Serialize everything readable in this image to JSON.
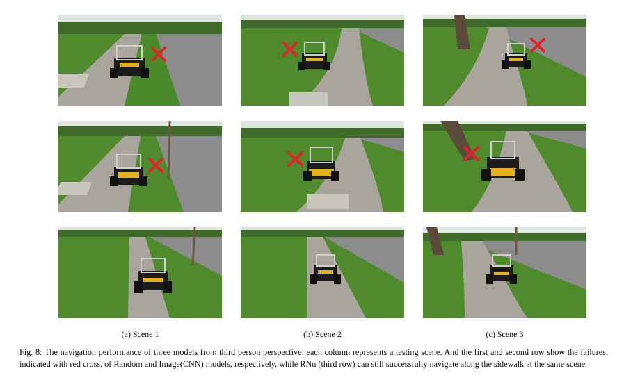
{
  "subfigures": [
    {
      "label": "(a) Scene 1"
    },
    {
      "label": "(b) Scene 2"
    },
    {
      "label": "(c) Scene 3"
    }
  ],
  "rows": [
    {
      "outcome": "failure",
      "marker": "red-cross"
    },
    {
      "outcome": "failure",
      "marker": "red-cross"
    },
    {
      "outcome": "success",
      "marker": "none"
    }
  ],
  "caption": "Fig. 8: The navigation performance of three models from third person perspective: each column represents a testing scene. And the first and second row show the failures, indicated with red cross, of Random and Image(CNN) models, respectively, while RNn (third row) can still successfully navigate along the sidewalk at the same scene.",
  "colors": {
    "grass": "#4f8a2c",
    "grass_dark": "#2f5d1b",
    "sidewalk": "#a9a59c",
    "road": "#8c8c8c",
    "sky": "#dfe6e0",
    "robot_body": "#1c1c1c",
    "robot_accent": "#e3b21c",
    "cross": "#e0242a"
  }
}
